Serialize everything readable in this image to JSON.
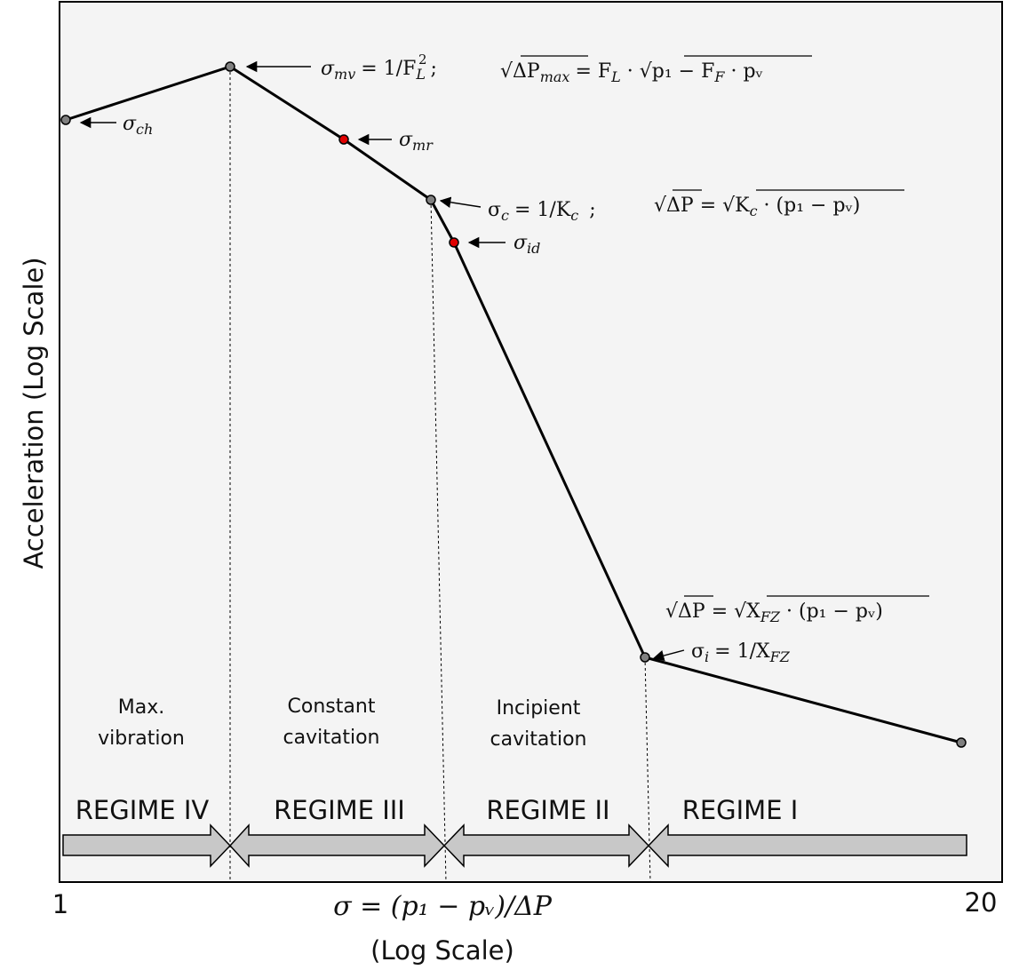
{
  "axes": {
    "ylabel": "Acceleration (Log Scale)",
    "x_min_label": "1",
    "x_max_label": "20",
    "xlabel_line1": "σ = (p₁ − pᵥ)/ΔP",
    "xlabel_line2": "(Log Scale)"
  },
  "points": {
    "ch": {
      "label": "σ",
      "sub": "ch"
    },
    "mv": {
      "label": "σ",
      "sub": "mv",
      "eq": "= 1/F",
      "eq_sub": "L",
      "eq_sup": "2",
      "sep": ";",
      "formula": "√ΔP",
      "formula_sub": "max",
      "formula_rhs": "= F",
      "formula_rhs_sub": "L",
      "formula_rhs_tail": " · √p₁ − F",
      "formula_tail_sub": "F",
      "formula_tail_end": " · pᵥ"
    },
    "mr": {
      "label": "σ",
      "sub": "mr"
    },
    "c": {
      "label": "σ",
      "sub": "c",
      "eq": "= 1/K",
      "eq_sub": "c",
      "sep": ";",
      "formula": "√ΔP = √K",
      "formula_sub": "c",
      "formula_tail": " · (p₁ − pᵥ)"
    },
    "id": {
      "label": "σ",
      "sub": "id"
    },
    "i": {
      "label": "σ",
      "sub": "i",
      "eq": "= 1/X",
      "eq_sub": "FZ",
      "formula": "√ΔP = √X",
      "formula_sub": "FZ",
      "formula_tail": " · (p₁ − pᵥ)"
    }
  },
  "regions": [
    {
      "line1": "Max.",
      "line2": "vibration"
    },
    {
      "line1": "Constant",
      "line2": "cavitation"
    },
    {
      "line1": "Incipient",
      "line2": "cavitation"
    }
  ],
  "regimes": [
    "REGIME IV",
    "REGIME III",
    "REGIME II",
    "REGIME I"
  ],
  "colors": {
    "plot_bg": "#f4f4f4",
    "node_gray": "#808080",
    "node_red": "#e00000",
    "arrow_fill": "#c8c8c8"
  }
}
